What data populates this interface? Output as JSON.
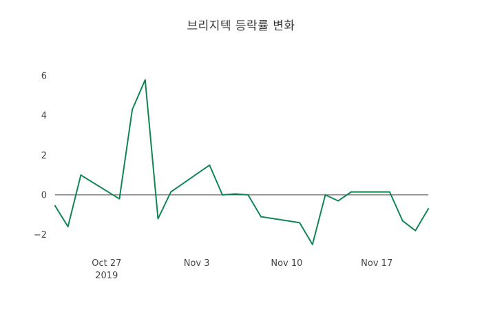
{
  "chart_data": {
    "type": "line",
    "title": "브리지텍 등락률 변화",
    "xlabel": "",
    "ylabel": "",
    "x_range": [
      "2019-10-23",
      "2019-11-21"
    ],
    "y_range": [
      -2.85,
      6.7
    ],
    "y_ticks": [
      -2,
      0,
      2,
      4,
      6
    ],
    "x_ticks": [
      {
        "date": "2019-10-27",
        "label": "Oct 27",
        "sublabel": "2019"
      },
      {
        "date": "2019-11-03",
        "label": "Nov 3"
      },
      {
        "date": "2019-11-10",
        "label": "Nov 10"
      },
      {
        "date": "2019-11-17",
        "label": "Nov 17"
      }
    ],
    "grid": false,
    "zero_line": true,
    "legend": "none",
    "series": [
      {
        "color": "#0f8554",
        "line_width": 2,
        "points": [
          {
            "date": "2019-10-23",
            "value": -0.55
          },
          {
            "date": "2019-10-24",
            "value": -1.6
          },
          {
            "date": "2019-10-25",
            "value": 1.0
          },
          {
            "date": "2019-10-28",
            "value": -0.2
          },
          {
            "date": "2019-10-29",
            "value": 4.3
          },
          {
            "date": "2019-10-30",
            "value": 5.8
          },
          {
            "date": "2019-10-31",
            "value": -1.2
          },
          {
            "date": "2019-11-01",
            "value": 0.15
          },
          {
            "date": "2019-11-04",
            "value": 1.5
          },
          {
            "date": "2019-11-05",
            "value": 0.0
          },
          {
            "date": "2019-11-06",
            "value": 0.05
          },
          {
            "date": "2019-11-07",
            "value": 0.0
          },
          {
            "date": "2019-11-08",
            "value": -1.1
          },
          {
            "date": "2019-11-11",
            "value": -1.4
          },
          {
            "date": "2019-11-12",
            "value": -2.5
          },
          {
            "date": "2019-11-13",
            "value": 0.0
          },
          {
            "date": "2019-11-14",
            "value": -0.3
          },
          {
            "date": "2019-11-15",
            "value": 0.15
          },
          {
            "date": "2019-11-18",
            "value": 0.15
          },
          {
            "date": "2019-11-19",
            "value": -1.3
          },
          {
            "date": "2019-11-20",
            "value": -1.8
          },
          {
            "date": "2019-11-21",
            "value": -0.7
          }
        ]
      }
    ],
    "colors": {
      "line": "#0f8554",
      "axis_text": "#444444",
      "zero_line": "#444444",
      "title_text": "#333333",
      "background": "#ffffff"
    }
  }
}
